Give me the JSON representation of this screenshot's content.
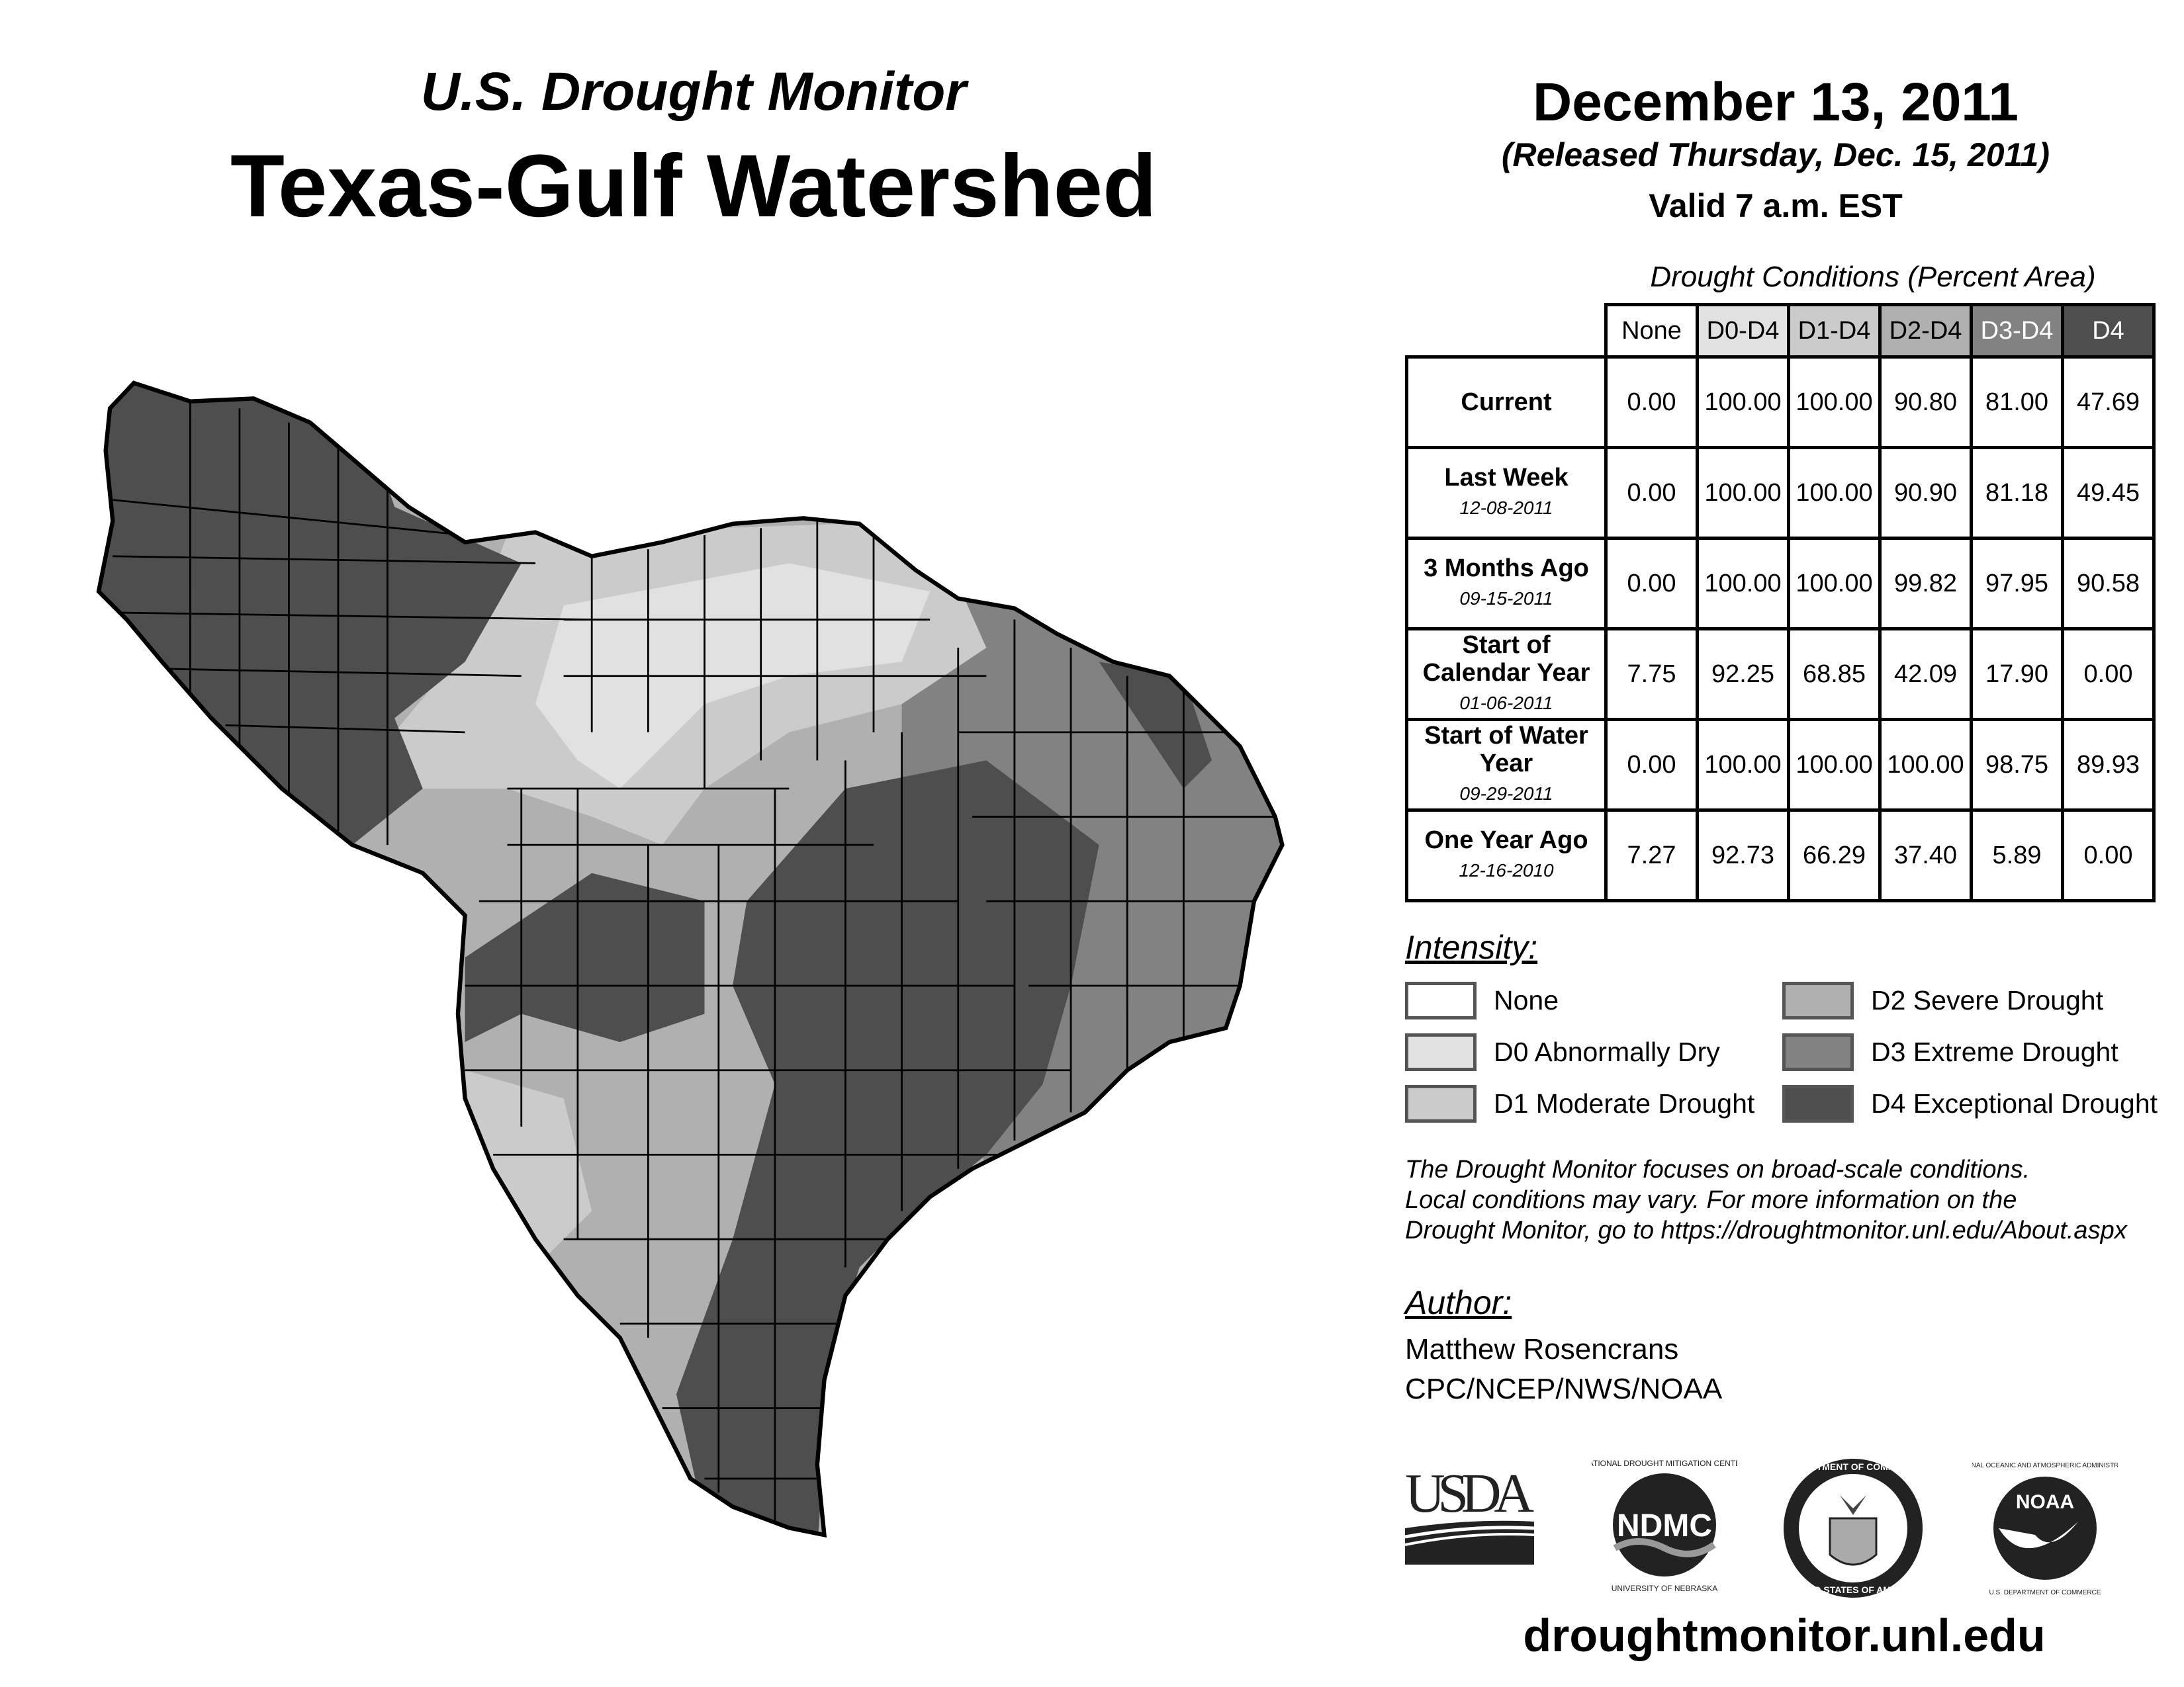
{
  "header": {
    "subtitle": "U.S. Drought Monitor",
    "title": "Texas-Gulf Watershed",
    "date": "December 13, 2011",
    "released": "(Released Thursday, Dec. 15, 2011)",
    "valid": "Valid 7 a.m. EST"
  },
  "table": {
    "title": "Drought Conditions (Percent Area)",
    "columns": [
      "None",
      "D0-D4",
      "D1-D4",
      "D2-D4",
      "D3-D4",
      "D4"
    ],
    "rows": [
      {
        "label": "Current",
        "date": "",
        "values": [
          "0.00",
          "100.00",
          "100.00",
          "90.80",
          "81.00",
          "47.69"
        ]
      },
      {
        "label": "Last Week",
        "date": "12-08-2011",
        "values": [
          "0.00",
          "100.00",
          "100.00",
          "90.90",
          "81.18",
          "49.45"
        ]
      },
      {
        "label": "3 Months Ago",
        "date": "09-15-2011",
        "values": [
          "0.00",
          "100.00",
          "100.00",
          "99.82",
          "97.95",
          "90.58"
        ]
      },
      {
        "label": "Start of Calendar Year",
        "date": "01-06-2011",
        "values": [
          "7.75",
          "92.25",
          "68.85",
          "42.09",
          "17.90",
          "0.00"
        ]
      },
      {
        "label": "Start of Water Year",
        "date": "09-29-2011",
        "values": [
          "0.00",
          "100.00",
          "100.00",
          "100.00",
          "98.75",
          "89.93"
        ]
      },
      {
        "label": "One Year Ago",
        "date": "12-16-2010",
        "values": [
          "7.27",
          "92.73",
          "66.29",
          "37.40",
          "5.89",
          "0.00"
        ]
      }
    ]
  },
  "legend": {
    "title": "Intensity:",
    "items": [
      {
        "label": "None",
        "color": "#ffffff"
      },
      {
        "label": "D0 Abnormally Dry",
        "color": "#e1e1e1"
      },
      {
        "label": "D1 Moderate Drought",
        "color": "#cbcbcb"
      },
      {
        "label": "D2 Severe Drought",
        "color": "#b0b0b0"
      },
      {
        "label": "D3 Extreme Drought",
        "color": "#828282"
      },
      {
        "label": "D4 Exceptional Drought",
        "color": "#4e4e4e"
      }
    ]
  },
  "disclaimer": [
    "The Drought Monitor focuses on broad-scale conditions.",
    "Local conditions may vary. For more information on the",
    "Drought Monitor, go to https://droughtmonitor.unl.edu/About.aspx"
  ],
  "author": {
    "heading": "Author:",
    "name": "Matthew Rosencrans",
    "org": "CPC/NCEP/NWS/NOAA"
  },
  "logos": {
    "usda": "USDA",
    "ndmc": "NDMC",
    "ndmc_ring": "NATIONAL DROUGHT MITIGATION CENTER · UNIVERSITY OF NEBRASKA",
    "doc_ring": "DEPARTMENT OF COMMERCE · UNITED STATES OF AMERICA",
    "noaa": "NOAA",
    "noaa_ring": "NATIONAL OCEANIC AND ATMOSPHERIC ADMINISTRATION · U.S. DEPARTMENT OF COMMERCE"
  },
  "footer_url": "droughtmonitor.unl.edu"
}
